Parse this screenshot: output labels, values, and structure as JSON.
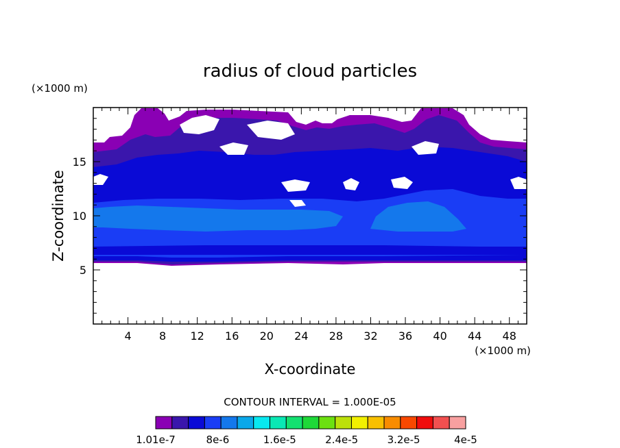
{
  "chart_data": {
    "type": "heatmap",
    "title": "radius of cloud particles",
    "xlabel": "X-coordinate",
    "ylabel": "Z-coordinate",
    "x_unit": "(×1000 m)",
    "y_unit": "(×1000 m)",
    "xlim": [
      0,
      50
    ],
    "ylim": [
      0,
      20
    ],
    "x_ticks": [
      "4",
      "8",
      "12",
      "16",
      "20",
      "24",
      "28",
      "32",
      "36",
      "40",
      "44",
      "48"
    ],
    "y_ticks": [
      "5",
      "10",
      "15"
    ],
    "contour_interval_label": "CONTOUR INTERVAL = 1.000E-05",
    "colorbar": {
      "colors": [
        "#8a00b4",
        "#3a16ac",
        "#0a0ad6",
        "#1a3df5",
        "#1478ec",
        "#0aa8ea",
        "#08e8f0",
        "#0ae8b4",
        "#14e070",
        "#1ed838",
        "#6ce010",
        "#bce00a",
        "#f2f000",
        "#f8c000",
        "#f88c00",
        "#f84800",
        "#f00c0c",
        "#f25050",
        "#f8a0a0"
      ],
      "labels": [
        "1.01e-7",
        "8e-6",
        "1.6e-5",
        "2.4e-5",
        "3.2e-5",
        "4e-5"
      ]
    },
    "regions": [
      {
        "level": "1.01e-7",
        "description_z_range": [
          5.5,
          19.8
        ]
      },
      {
        "level": "8e-6",
        "description_z_range": [
          5.8,
          16.5
        ]
      },
      {
        "level": "1.6e-5",
        "description_z_range": [
          5.8,
          11.0
        ]
      }
    ]
  }
}
